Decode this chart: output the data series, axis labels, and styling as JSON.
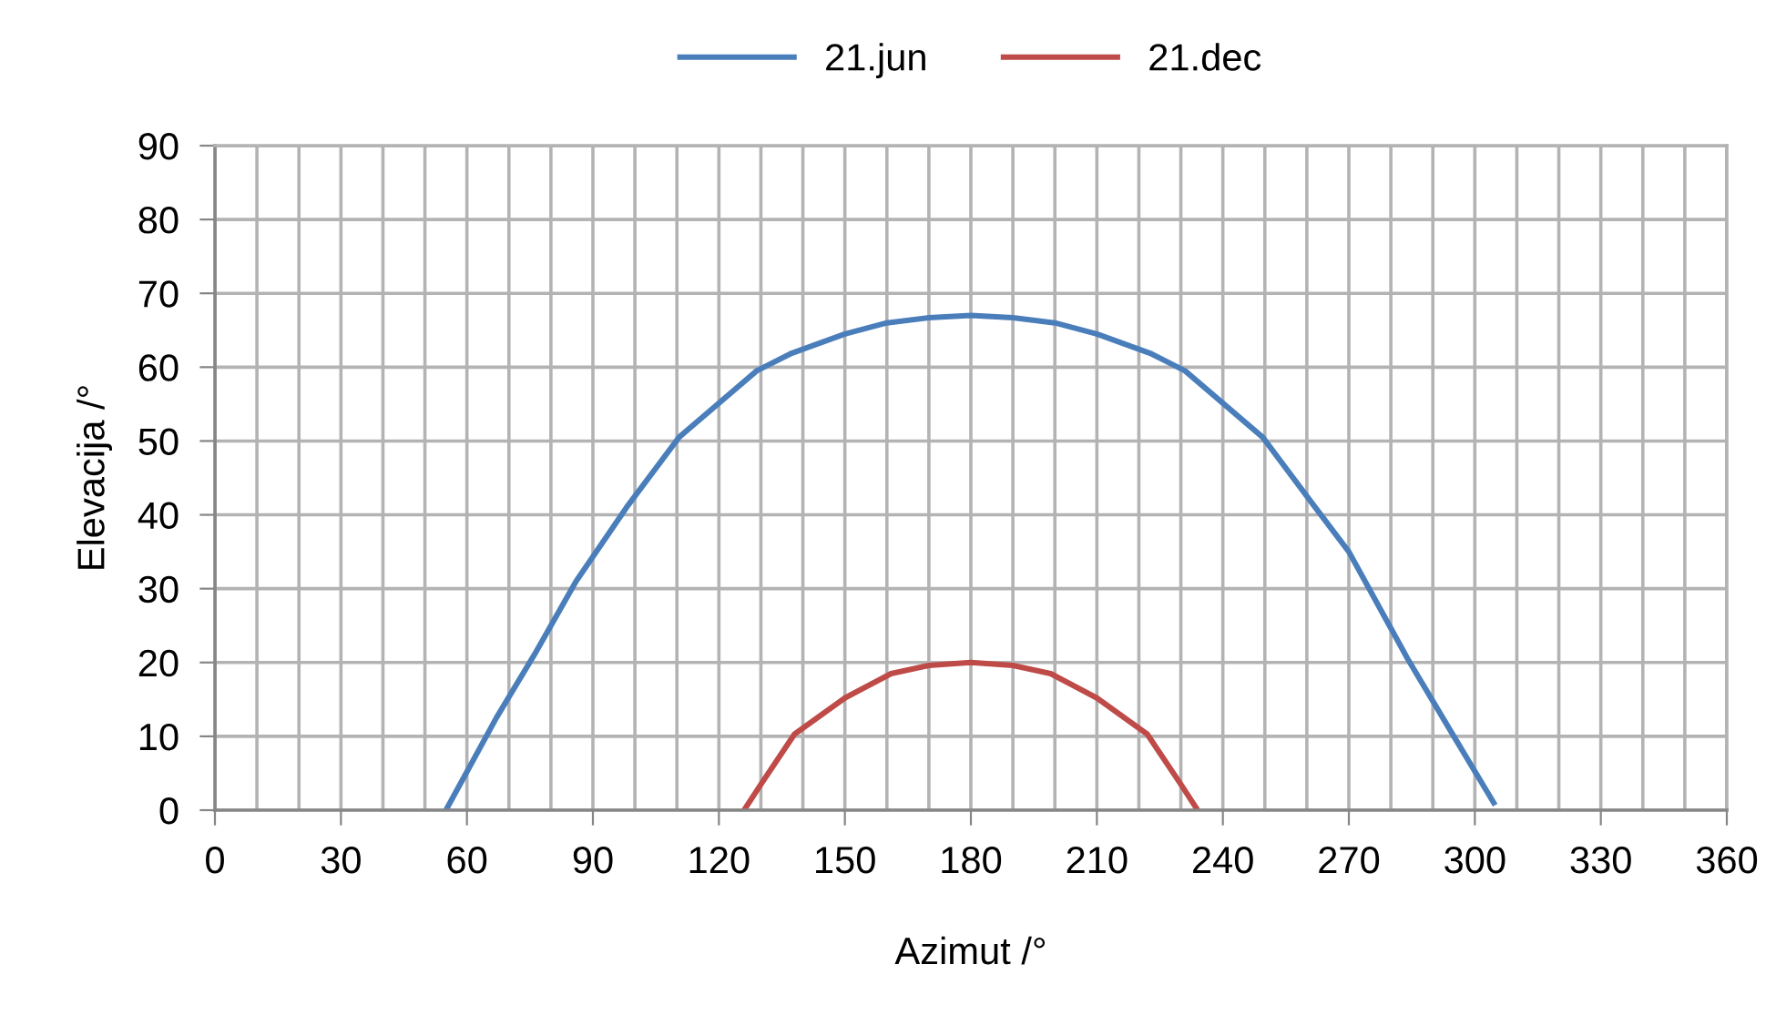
{
  "chart_data": {
    "type": "line",
    "xlabel": "Azimut /°",
    "ylabel": "Elevacija /°",
    "series": [
      {
        "name": "21.jun",
        "color": "#4a7ebb",
        "x": [
          55,
          67,
          76,
          86,
          98,
          110.5,
          129,
          137,
          150,
          160,
          170,
          180,
          190,
          200,
          210,
          223,
          231,
          249.5,
          262,
          270,
          284,
          295,
          304.5
        ],
        "values": [
          0,
          12.5,
          21,
          31,
          41,
          50.5,
          59.5,
          61.8,
          64.5,
          66,
          66.7,
          67,
          66.7,
          66,
          64.5,
          61.8,
          59.5,
          50.5,
          41,
          35,
          20.5,
          10,
          1
        ]
      },
      {
        "name": "21.dec",
        "color": "#be4b48",
        "x": [
          126,
          130,
          138,
          150,
          161,
          170,
          180,
          190,
          199,
          210,
          222,
          230,
          234
        ],
        "values": [
          0,
          3.5,
          10.3,
          15.2,
          18.5,
          19.6,
          20,
          19.6,
          18.5,
          15.2,
          10.3,
          3.5,
          0
        ]
      }
    ],
    "xlim": [
      0,
      360
    ],
    "xticks": [
      0,
      {
        "value": 10,
        "label": null
      },
      {
        "value": 20,
        "label": null
      },
      30,
      {
        "value": 40,
        "label": null
      },
      {
        "value": 50,
        "label": null
      },
      60,
      {
        "value": 70,
        "label": null
      },
      {
        "value": 80,
        "label": null
      },
      90,
      {
        "value": 100,
        "label": null
      },
      {
        "value": 110,
        "label": null
      },
      120,
      {
        "value": 130,
        "label": null
      },
      {
        "value": 140,
        "label": null
      },
      150,
      {
        "value": 160,
        "label": null
      },
      {
        "value": 170,
        "label": null
      },
      180,
      {
        "value": 190,
        "label": null
      },
      {
        "value": 200,
        "label": null
      },
      210,
      {
        "value": 220,
        "label": null
      },
      {
        "value": 230,
        "label": null
      },
      240,
      {
        "value": 250,
        "label": null
      },
      {
        "value": 260,
        "label": null
      },
      270,
      {
        "value": 280,
        "label": null
      },
      {
        "value": 290,
        "label": null
      },
      300,
      {
        "value": 310,
        "label": null
      },
      {
        "value": 320,
        "label": null
      },
      330,
      {
        "value": 340,
        "label": null
      },
      {
        "value": 350,
        "label": null
      },
      360
    ],
    "ylim": [
      0,
      90
    ],
    "yticks": [
      0,
      10,
      20,
      30,
      40,
      50,
      60,
      70,
      80,
      90
    ],
    "grid": true,
    "legend": "top",
    "marker": "none",
    "line_style": "solid"
  }
}
